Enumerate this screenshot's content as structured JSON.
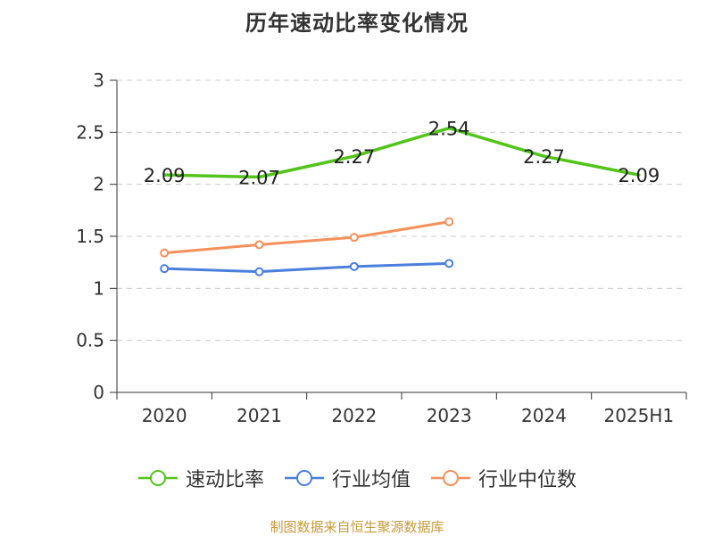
{
  "chart_data": {
    "type": "line",
    "title": "历年速动比率变化情况",
    "categories": [
      "2020",
      "2021",
      "2022",
      "2023",
      "2024",
      "2025H1"
    ],
    "ylim": [
      0,
      3
    ],
    "yticks": [
      "0",
      "0.5",
      "1",
      "1.5",
      "2",
      "2.5",
      "3"
    ],
    "grid": true,
    "legend_position": "bottom",
    "series": [
      {
        "name": "速动比率",
        "color": "#52c41a",
        "values": [
          2.09,
          2.07,
          2.27,
          2.54,
          2.27,
          2.09
        ],
        "data_labels": [
          "2.09",
          "2.07",
          "2.27",
          "2.54",
          "2.27",
          "2.09"
        ]
      },
      {
        "name": "行业均值",
        "color": "#4a7fdc",
        "values": [
          1.19,
          1.16,
          1.21,
          1.24,
          null,
          null
        ]
      },
      {
        "name": "行业中位数",
        "color": "#f4905a",
        "values": [
          1.34,
          1.42,
          1.49,
          1.64,
          null,
          null
        ]
      }
    ],
    "source": "制图数据来自恒生聚源数据库"
  }
}
